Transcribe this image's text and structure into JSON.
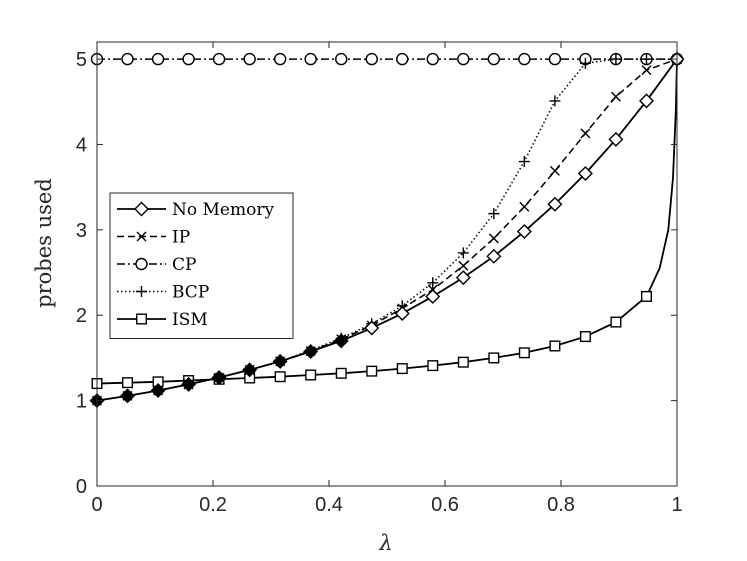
{
  "chart_data": {
    "type": "line",
    "xlabel": "λ",
    "ylabel": "probes used",
    "xlim": [
      0,
      1
    ],
    "ylim": [
      0,
      5.2
    ],
    "xticks": [
      0,
      0.2,
      0.4,
      0.6,
      0.8,
      1
    ],
    "xtick_labels": [
      "0",
      "0.2",
      "0.4",
      "0.6",
      "0.8",
      "1"
    ],
    "yticks": [
      0,
      1,
      2,
      3,
      4,
      5
    ],
    "ytick_labels": [
      "0",
      "1",
      "2",
      "3",
      "4",
      "5"
    ],
    "grid": false,
    "legend_position": "center-left",
    "series": [
      {
        "name": "No Memory",
        "marker": "diamond",
        "line_style": "solid",
        "x": [
          0,
          0.0526,
          0.1053,
          0.1579,
          0.2105,
          0.2632,
          0.3158,
          0.3684,
          0.4211,
          0.4737,
          0.5263,
          0.5789,
          0.6316,
          0.6842,
          0.7368,
          0.7895,
          0.8421,
          0.8947,
          0.9474,
          1.0
        ],
        "y": [
          1.0,
          1.055,
          1.118,
          1.19,
          1.27,
          1.36,
          1.46,
          1.575,
          1.7,
          1.85,
          2.02,
          2.22,
          2.44,
          2.69,
          2.98,
          3.3,
          3.66,
          4.06,
          4.51,
          5.0
        ]
      },
      {
        "name": "IP",
        "marker": "x",
        "line_style": "dashed",
        "x": [
          0,
          0.0526,
          0.1053,
          0.1579,
          0.2105,
          0.2632,
          0.3158,
          0.3684,
          0.4211,
          0.4737,
          0.5263,
          0.5789,
          0.6316,
          0.6842,
          0.7368,
          0.7895,
          0.8421,
          0.8947,
          0.9474,
          1.0
        ],
        "y": [
          1.0,
          1.055,
          1.118,
          1.19,
          1.27,
          1.36,
          1.46,
          1.58,
          1.72,
          1.88,
          2.08,
          2.3,
          2.58,
          2.9,
          3.27,
          3.69,
          4.13,
          4.56,
          4.87,
          5.0
        ]
      },
      {
        "name": "CP",
        "marker": "circle",
        "line_style": "dashdot",
        "x": [
          0,
          0.0526,
          0.1053,
          0.1579,
          0.2105,
          0.2632,
          0.3158,
          0.3684,
          0.4211,
          0.4737,
          0.5263,
          0.5789,
          0.6316,
          0.6842,
          0.7368,
          0.7895,
          0.8421,
          0.8947,
          0.9474,
          1.0
        ],
        "y": [
          5,
          5,
          5,
          5,
          5,
          5,
          5,
          5,
          5,
          5,
          5,
          5,
          5,
          5,
          5,
          5,
          5,
          5,
          5,
          5
        ]
      },
      {
        "name": "BCP",
        "marker": "plus",
        "line_style": "dotted",
        "x": [
          0,
          0.0526,
          0.1053,
          0.1579,
          0.2105,
          0.2632,
          0.3158,
          0.3684,
          0.4211,
          0.4737,
          0.5263,
          0.5789,
          0.6316,
          0.6842,
          0.7368,
          0.7895,
          0.8421,
          0.8947,
          0.9474,
          1.0
        ],
        "y": [
          1.0,
          1.055,
          1.118,
          1.19,
          1.27,
          1.36,
          1.46,
          1.59,
          1.73,
          1.9,
          2.11,
          2.38,
          2.73,
          3.19,
          3.8,
          4.51,
          4.95,
          5.0,
          5.0,
          5.0
        ]
      },
      {
        "name": "ISM",
        "marker": "square",
        "line_style": "solid",
        "x": [
          0,
          0.0526,
          0.1053,
          0.1579,
          0.2105,
          0.2632,
          0.3158,
          0.3684,
          0.4211,
          0.4737,
          0.5263,
          0.5789,
          0.6316,
          0.6842,
          0.7368,
          0.7895,
          0.8421,
          0.8947,
          0.9474,
          0.97,
          0.985,
          0.993,
          0.998,
          1.0
        ],
        "y": [
          1.2,
          1.21,
          1.22,
          1.235,
          1.25,
          1.265,
          1.28,
          1.3,
          1.32,
          1.345,
          1.375,
          1.41,
          1.45,
          1.5,
          1.56,
          1.64,
          1.75,
          1.92,
          2.22,
          2.55,
          3.0,
          3.6,
          4.4,
          5.0
        ],
        "marker_x": [
          0,
          0.0526,
          0.1053,
          0.1579,
          0.2105,
          0.2632,
          0.3158,
          0.3684,
          0.4211,
          0.4737,
          0.5263,
          0.5789,
          0.6316,
          0.6842,
          0.7368,
          0.7895,
          0.8421,
          0.8947,
          0.9474
        ],
        "marker_y": [
          1.2,
          1.21,
          1.22,
          1.235,
          1.25,
          1.265,
          1.28,
          1.3,
          1.32,
          1.345,
          1.375,
          1.41,
          1.45,
          1.5,
          1.56,
          1.64,
          1.75,
          1.92,
          2.22
        ]
      }
    ]
  }
}
